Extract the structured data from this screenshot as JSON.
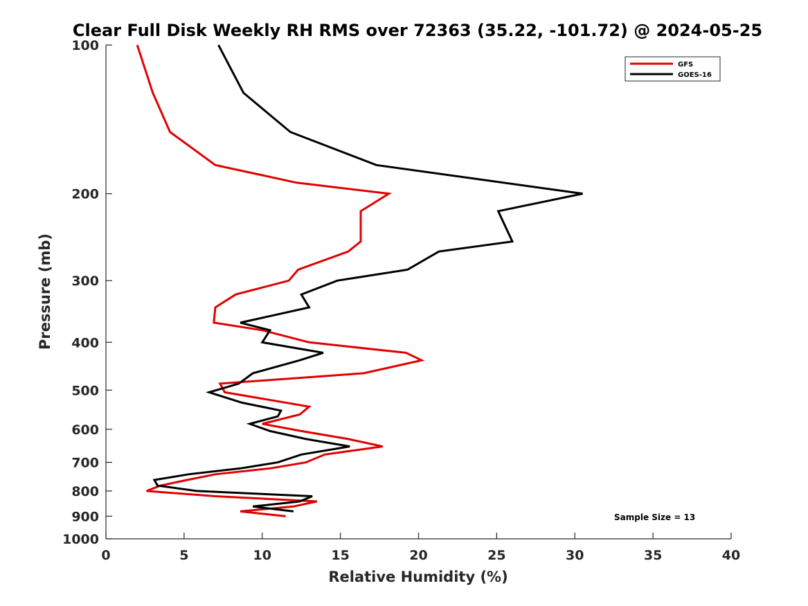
{
  "chart_data": {
    "type": "line",
    "title": "Clear Full Disk Weekly RH RMS over 72363 (35.22, -101.72) @ 2024-05-25",
    "xlabel": "Relative Humidity (%)",
    "ylabel": "Pressure (mb)",
    "xlim": [
      0,
      40
    ],
    "ylim": [
      100,
      1000
    ],
    "y_scale": "log",
    "y_reversed": true,
    "xticks": [
      0,
      5,
      10,
      15,
      20,
      25,
      30,
      35,
      40
    ],
    "xtick_labels": [
      "0",
      "5",
      "10",
      "15",
      "20",
      "25",
      "30",
      "35",
      "40"
    ],
    "yticks": [
      100,
      200,
      300,
      400,
      500,
      600,
      700,
      800,
      900,
      1000
    ],
    "ytick_labels": [
      "100",
      "200",
      "300",
      "400",
      "500",
      "600",
      "700",
      "800",
      "900",
      "1000"
    ],
    "grid": false,
    "legend_position": "top-right",
    "annotation": "Sample Size = 13",
    "series": [
      {
        "name": "GFS",
        "color": "#e00000",
        "points": [
          [
            2.0,
            100
          ],
          [
            3.0,
            125
          ],
          [
            4.1,
            150
          ],
          [
            7.0,
            175
          ],
          [
            12.2,
            190
          ],
          [
            18.1,
            200
          ],
          [
            16.3,
            217
          ],
          [
            16.3,
            250
          ],
          [
            15.5,
            262
          ],
          [
            12.3,
            285
          ],
          [
            11.7,
            300
          ],
          [
            8.3,
            320
          ],
          [
            7.0,
            340
          ],
          [
            6.9,
            365
          ],
          [
            10.0,
            378
          ],
          [
            13.0,
            400
          ],
          [
            19.2,
            420
          ],
          [
            20.2,
            435
          ],
          [
            16.5,
            462
          ],
          [
            7.3,
            485
          ],
          [
            7.6,
            505
          ],
          [
            13.0,
            540
          ],
          [
            12.4,
            560
          ],
          [
            10.0,
            585
          ],
          [
            12.5,
            605
          ],
          [
            15.5,
            628
          ],
          [
            17.7,
            650
          ],
          [
            14.0,
            675
          ],
          [
            12.8,
            700
          ],
          [
            10.5,
            720
          ],
          [
            7.0,
            740
          ],
          [
            5.2,
            760
          ],
          [
            3.5,
            780
          ],
          [
            2.6,
            800
          ],
          [
            7.0,
            820
          ],
          [
            13.5,
            840
          ],
          [
            12.0,
            860
          ],
          [
            8.6,
            880
          ],
          [
            11.5,
            900
          ]
        ]
      },
      {
        "name": "GOES-16",
        "color": "#000000",
        "points": [
          [
            7.2,
            100
          ],
          [
            8.8,
            125
          ],
          [
            11.8,
            150
          ],
          [
            17.3,
            175
          ],
          [
            30.5,
            200
          ],
          [
            25.1,
            217
          ],
          [
            26.0,
            250
          ],
          [
            21.3,
            262
          ],
          [
            19.3,
            285
          ],
          [
            14.8,
            300
          ],
          [
            12.5,
            320
          ],
          [
            13.0,
            340
          ],
          [
            8.6,
            365
          ],
          [
            10.5,
            378
          ],
          [
            10.0,
            400
          ],
          [
            13.9,
            420
          ],
          [
            12.4,
            435
          ],
          [
            9.4,
            462
          ],
          [
            8.5,
            485
          ],
          [
            6.6,
            505
          ],
          [
            8.7,
            530
          ],
          [
            11.2,
            550
          ],
          [
            11.0,
            565
          ],
          [
            9.2,
            585
          ],
          [
            10.5,
            605
          ],
          [
            12.8,
            628
          ],
          [
            15.6,
            650
          ],
          [
            12.5,
            675
          ],
          [
            11.0,
            700
          ],
          [
            8.6,
            720
          ],
          [
            5.3,
            740
          ],
          [
            3.1,
            760
          ],
          [
            3.3,
            780
          ],
          [
            5.8,
            800
          ],
          [
            13.2,
            820
          ],
          [
            12.4,
            840
          ],
          [
            9.4,
            860
          ],
          [
            12.0,
            880
          ]
        ]
      }
    ]
  }
}
